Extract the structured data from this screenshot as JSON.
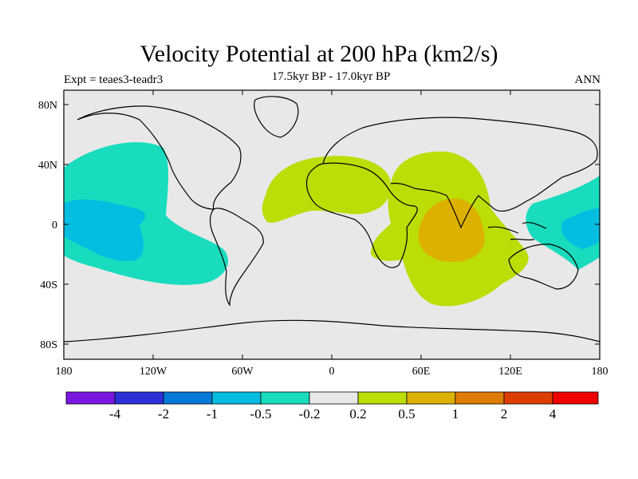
{
  "header": {
    "title": "Velocity Potential at 200 hPa (km2/s)",
    "subtitle": "17.5kyr BP - 17.0kyr BP",
    "experiment": "Expt = teaes3-teadr3",
    "season": "ANN"
  },
  "axes": {
    "x_tick_labels": [
      "180",
      "120W",
      "60W",
      "0",
      "60E",
      "120E",
      "180"
    ],
    "y_tick_labels": [
      "80N",
      "40N",
      "0",
      "40S",
      "80S"
    ]
  },
  "colorbar": {
    "labels": [
      "-4",
      "-2",
      "-1",
      "-0.5",
      "-0.2",
      "0.2",
      "0.5",
      "1",
      "2",
      "4"
    ],
    "colors": [
      "#7b16df",
      "#2c2fd8",
      "#0479d8",
      "#05bde1",
      "#18dcbd",
      "#e8e8e8",
      "#bcdd06",
      "#ddb102",
      "#df7c04",
      "#dd3c03",
      "#ee0000"
    ]
  },
  "map": {
    "background_color": "#e8e8e8",
    "regions": [
      {
        "name": "east-pacific-negative",
        "level": "-0.5 to -0.2",
        "color": "#18dcbd"
      },
      {
        "name": "east-pacific-core",
        "level": "-1 to -0.5",
        "color": "#05bde1"
      },
      {
        "name": "west-pacific-negative",
        "level": "-0.5 to -0.2",
        "color": "#18dcbd"
      },
      {
        "name": "west-pacific-core",
        "level": "-1 to -0.5",
        "color": "#05bde1"
      },
      {
        "name": "atlantic-africa-positive",
        "level": "0.2 to 0.5",
        "color": "#bcdd06"
      },
      {
        "name": "indian-ocean-positive",
        "level": "0.2 to 0.5",
        "color": "#bcdd06"
      },
      {
        "name": "indian-ocean-core",
        "level": "0.5 to 1",
        "color": "#ddb102"
      }
    ]
  }
}
